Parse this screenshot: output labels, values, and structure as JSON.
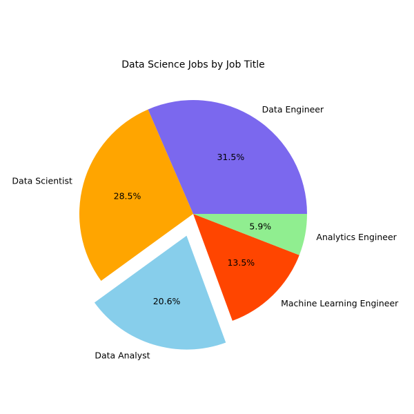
{
  "chart_data": {
    "type": "pie",
    "title": "Data Science Jobs by Job Title",
    "start_angle_deg": 0,
    "direction": "counterclockwise",
    "slices": [
      {
        "label": "Data Engineer",
        "value": 31.5,
        "pct_label": "31.5%",
        "color": "#7B68EE",
        "exploded": false
      },
      {
        "label": "Data Scientist",
        "value": 28.5,
        "pct_label": "28.5%",
        "color": "#FFA500",
        "exploded": false
      },
      {
        "label": "Data Analyst",
        "value": 20.6,
        "pct_label": "20.6%",
        "color": "#87CEEB",
        "exploded": true
      },
      {
        "label": "Machine Learning Engineer",
        "value": 13.5,
        "pct_label": "13.5%",
        "color": "#FF4500",
        "exploded": false
      },
      {
        "label": "Analytics Engineer",
        "value": 5.9,
        "pct_label": "5.9%",
        "color": "#90EE90",
        "exploded": false
      }
    ]
  }
}
